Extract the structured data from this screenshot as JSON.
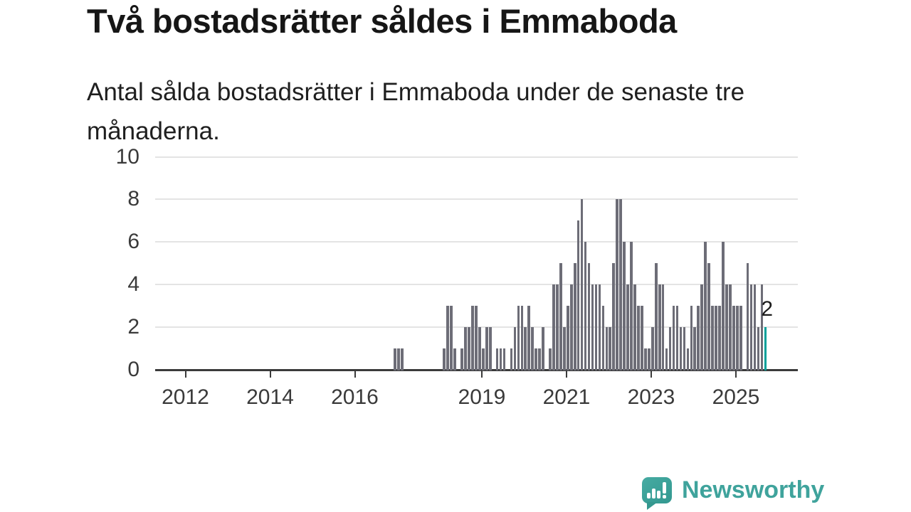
{
  "header": {
    "title": "Två bostadsrätter såldes i Emmaboda",
    "subtitle": "Antal sålda bostadsrätter i Emmaboda under de senaste tre månaderna."
  },
  "chart_data": {
    "type": "bar",
    "title": "Två bostadsrätter såldes i Emmaboda",
    "xlabel": "",
    "ylabel": "",
    "ylim": [
      0,
      10
    ],
    "y_ticks": [
      0,
      2,
      4,
      6,
      8,
      10
    ],
    "x_tick_labels": [
      "2012",
      "2014",
      "2016",
      "2019",
      "2021",
      "2023",
      "2025"
    ],
    "grid": "horizontal",
    "start_month": "2016-12",
    "frequency": "monthly",
    "values": [
      1,
      1,
      1,
      0,
      0,
      0,
      0,
      0,
      0,
      0,
      0,
      0,
      0,
      0,
      1,
      3,
      3,
      1,
      0,
      1,
      2,
      2,
      3,
      3,
      2,
      1,
      2,
      2,
      0,
      1,
      1,
      1,
      0,
      1,
      2,
      3,
      3,
      2,
      3,
      2,
      1,
      1,
      2,
      0,
      1,
      4,
      4,
      5,
      2,
      3,
      4,
      5,
      7,
      8,
      6,
      5,
      4,
      4,
      4,
      3,
      2,
      2,
      5,
      8,
      8,
      6,
      4,
      6,
      4,
      3,
      3,
      1,
      1,
      2,
      5,
      4,
      4,
      1,
      2,
      3,
      3,
      2,
      2,
      1,
      3,
      2,
      3,
      4,
      6,
      5,
      3,
      3,
      3,
      6,
      4,
      4,
      3,
      3,
      3,
      0,
      5,
      4,
      4,
      2,
      4,
      2
    ],
    "highlight_last": {
      "value": 2,
      "label": "2",
      "color": "#00a09a"
    },
    "bar_color": "#6d6d77"
  },
  "branding": {
    "name": "Newsworthy",
    "icon": "newsworthy-speech-bubble-chart-icon",
    "color": "#3fa39c"
  },
  "colors": {
    "accent_teal": "#00a09a",
    "bar_gray": "#6d6d77",
    "axis": "#3b3b3b",
    "gridline": "#e4e4e4"
  }
}
